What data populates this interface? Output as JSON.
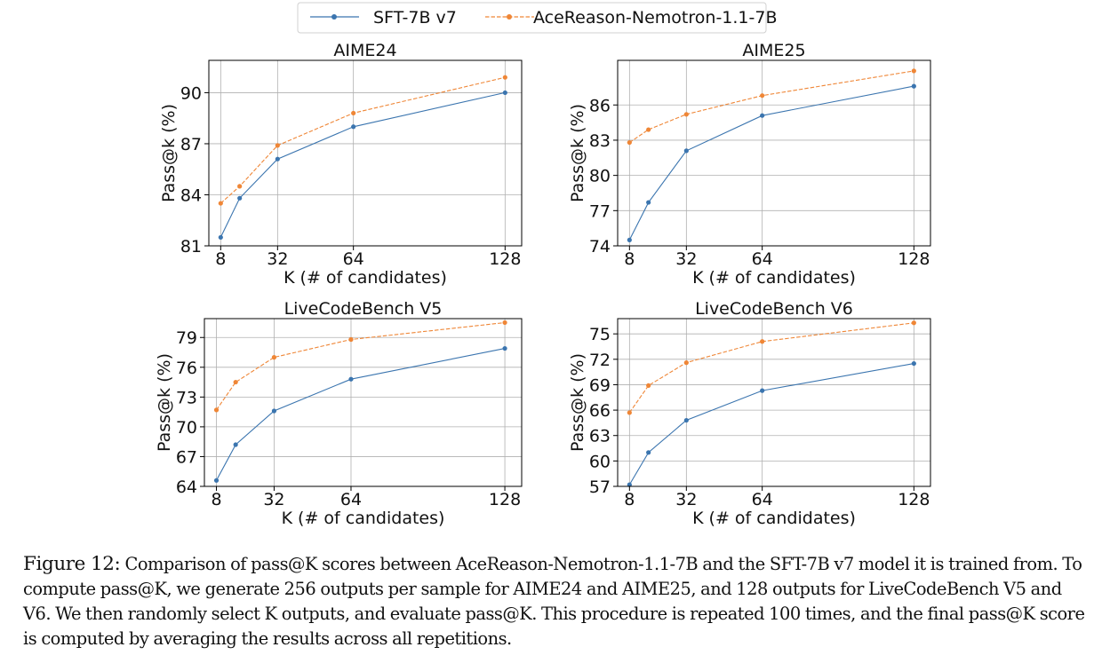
{
  "legend": [
    {
      "label": "SFT-7B v7",
      "color": "#3b75af",
      "dash": "solid"
    },
    {
      "label": "AceReason-Nemotron-1.1-7B",
      "color": "#ef8636",
      "dash": "dashed"
    }
  ],
  "chart_data": [
    {
      "type": "line",
      "title": "AIME24",
      "xlabel": "K (# of candidates)",
      "ylabel": "Pass@k (%)",
      "x": [
        8,
        16,
        32,
        64,
        128
      ],
      "xticks": [
        8,
        32,
        64,
        128
      ],
      "xtick_labels": [
        "8",
        "32",
        "64",
        "128"
      ],
      "xlim": [
        3,
        135
      ],
      "yticks": [
        81,
        84,
        87,
        90
      ],
      "yticklabels": [
        "81",
        "84",
        "87",
        "90"
      ],
      "ylim": [
        81,
        91.9
      ],
      "grid": true,
      "series": [
        {
          "name": "SFT-7B v7",
          "values": [
            81.5,
            83.8,
            86.1,
            88.0,
            90.0
          ]
        },
        {
          "name": "AceReason-Nemotron-1.1-7B",
          "values": [
            83.5,
            84.5,
            86.9,
            88.8,
            90.9
          ]
        }
      ]
    },
    {
      "type": "line",
      "title": "AIME25",
      "xlabel": "K (# of candidates)",
      "ylabel": "Pass@k (%)",
      "x": [
        8,
        16,
        32,
        64,
        128
      ],
      "xticks": [
        8,
        32,
        64,
        128
      ],
      "xtick_labels": [
        "8",
        "32",
        "64",
        "128"
      ],
      "xlim": [
        3,
        135
      ],
      "yticks": [
        74,
        77,
        80,
        83,
        86
      ],
      "yticklabels": [
        "74",
        "77",
        "80",
        "83",
        "86"
      ],
      "ylim": [
        74,
        89.8
      ],
      "grid": true,
      "series": [
        {
          "name": "SFT-7B v7",
          "values": [
            74.5,
            77.7,
            82.1,
            85.1,
            87.6
          ]
        },
        {
          "name": "AceReason-Nemotron-1.1-7B",
          "values": [
            82.8,
            83.9,
            85.2,
            86.8,
            88.9
          ]
        }
      ]
    },
    {
      "type": "line",
      "title": "LiveCodeBench V5",
      "xlabel": "K (# of candidates)",
      "ylabel": "Pass@k (%)",
      "x": [
        8,
        16,
        32,
        64,
        128
      ],
      "xticks": [
        8,
        32,
        64,
        128
      ],
      "xtick_labels": [
        "8",
        "32",
        "64",
        "128"
      ],
      "xlim": [
        3,
        135
      ],
      "yticks": [
        64,
        67,
        70,
        73,
        76,
        79
      ],
      "yticklabels": [
        "64",
        "67",
        "70",
        "73",
        "76",
        "79"
      ],
      "ylim": [
        64,
        80.9
      ],
      "grid": true,
      "series": [
        {
          "name": "SFT-7B v7",
          "values": [
            64.6,
            68.2,
            71.6,
            74.8,
            77.9
          ]
        },
        {
          "name": "AceReason-Nemotron-1.1-7B",
          "values": [
            71.7,
            74.5,
            77.0,
            78.8,
            80.5
          ]
        }
      ]
    },
    {
      "type": "line",
      "title": "LiveCodeBench V6",
      "xlabel": "K (# of candidates)",
      "ylabel": "Pass@k (%)",
      "x": [
        8,
        16,
        32,
        64,
        128
      ],
      "xticks": [
        8,
        32,
        64,
        128
      ],
      "xtick_labels": [
        "8",
        "32",
        "64",
        "128"
      ],
      "xlim": [
        3,
        135
      ],
      "yticks": [
        57,
        60,
        63,
        66,
        69,
        72,
        75
      ],
      "yticklabels": [
        "57",
        "60",
        "63",
        "66",
        "69",
        "72",
        "75"
      ],
      "ylim": [
        57,
        76.8
      ],
      "grid": true,
      "series": [
        {
          "name": "SFT-7B v7",
          "values": [
            57.2,
            61.0,
            64.8,
            68.3,
            71.5
          ]
        },
        {
          "name": "AceReason-Nemotron-1.1-7B",
          "values": [
            65.7,
            68.9,
            71.6,
            74.1,
            76.3
          ]
        }
      ]
    }
  ],
  "caption": {
    "label": "Figure 12:",
    "text": "Comparison of pass@K scores between AceReason-Nemotron-1.1-7B and the SFT-7B v7 model it is trained from. To compute pass@K, we generate 256 outputs per sample for AIME24 and AIME25, and 128 outputs for LiveCodeBench V5 and V6. We then randomly select K outputs, and evaluate pass@K. This procedure is repeated 100 times, and the final pass@K score is computed by averaging the results across all repetitions."
  }
}
